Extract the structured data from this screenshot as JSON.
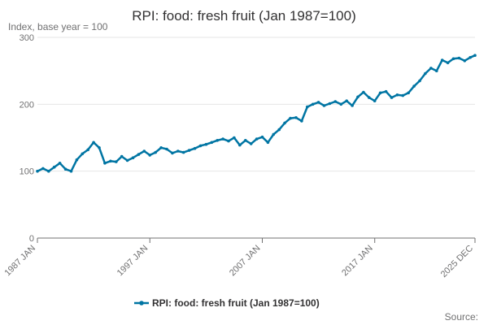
{
  "chart_data": {
    "type": "line",
    "title": "RPI: food: fresh fruit (Jan 1987=100)",
    "ylabel": "Index, base year = 100",
    "xlabel": "",
    "ylim": [
      0,
      300
    ],
    "xlim": [
      "1987-01",
      "2025-12"
    ],
    "y_ticks": [
      0,
      100,
      200,
      300
    ],
    "x_tick_labels": [
      "1987 JAN",
      "1997 JAN",
      "2007 JAN",
      "2017 JAN",
      "2025 DEC"
    ],
    "x_tick_values": [
      "1987-01",
      "1997-01",
      "2007-01",
      "2017-01",
      "2025-12"
    ],
    "grid": true,
    "legend_position": "bottom",
    "series": [
      {
        "name": "RPI: food: fresh fruit (Jan 1987=100)",
        "color": "#0075a3",
        "x": [
          "1987-01",
          "1987-07",
          "1988-01",
          "1988-07",
          "1989-01",
          "1989-07",
          "1990-01",
          "1990-07",
          "1991-01",
          "1991-07",
          "1992-01",
          "1992-07",
          "1993-01",
          "1993-07",
          "1994-01",
          "1994-07",
          "1995-01",
          "1995-07",
          "1996-01",
          "1996-07",
          "1997-01",
          "1997-07",
          "1998-01",
          "1998-07",
          "1999-01",
          "1999-07",
          "2000-01",
          "2000-07",
          "2001-01",
          "2001-07",
          "2002-01",
          "2002-07",
          "2003-01",
          "2003-07",
          "2004-01",
          "2004-07",
          "2005-01",
          "2005-07",
          "2006-01",
          "2006-07",
          "2007-01",
          "2007-07",
          "2008-01",
          "2008-07",
          "2009-01",
          "2009-07",
          "2010-01",
          "2010-07",
          "2011-01",
          "2011-07",
          "2012-01",
          "2012-07",
          "2013-01",
          "2013-07",
          "2014-01",
          "2014-07",
          "2015-01",
          "2015-07",
          "2016-01",
          "2016-07",
          "2017-01",
          "2017-07",
          "2018-01",
          "2018-07",
          "2019-01",
          "2019-07",
          "2020-01",
          "2020-07",
          "2021-01",
          "2021-07",
          "2022-01",
          "2022-07",
          "2023-01",
          "2023-07",
          "2024-01",
          "2024-07",
          "2025-01",
          "2025-07",
          "2025-12"
        ],
        "values": [
          100,
          104,
          100,
          106,
          112,
          103,
          100,
          117,
          126,
          132,
          143,
          135,
          112,
          115,
          114,
          122,
          116,
          120,
          125,
          130,
          124,
          128,
          135,
          133,
          127,
          130,
          128,
          131,
          134,
          138,
          140,
          143,
          146,
          148,
          145,
          150,
          139,
          146,
          141,
          148,
          151,
          143,
          155,
          162,
          172,
          179,
          180,
          175,
          196,
          200,
          203,
          198,
          201,
          204,
          200,
          205,
          198,
          211,
          218,
          210,
          205,
          217,
          219,
          210,
          214,
          213,
          217,
          227,
          235,
          246,
          254,
          250,
          266,
          262,
          268,
          269,
          265,
          270,
          273
        ]
      }
    ]
  },
  "legend": {
    "label": "RPI: food: fresh fruit (Jan 1987=100)"
  },
  "footer": {
    "source": "Source:"
  }
}
